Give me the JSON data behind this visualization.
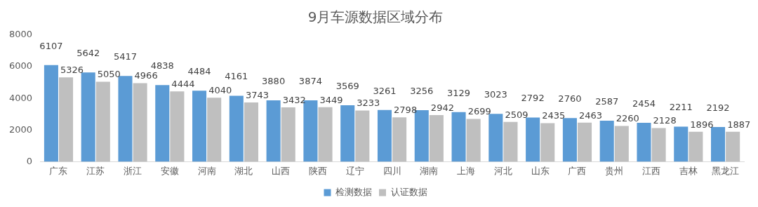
{
  "chart_data": {
    "type": "bar",
    "title": "9月车源数据区域分布",
    "categories": [
      "广东",
      "江苏",
      "浙江",
      "安徽",
      "河南",
      "湖北",
      "山西",
      "陕西",
      "辽宁",
      "四川",
      "湖南",
      "上海",
      "河北",
      "山东",
      "广西",
      "贵州",
      "江西",
      "吉林",
      "黑龙江"
    ],
    "series": [
      {
        "name": "检测数据",
        "color": "#5b9bd5",
        "values": [
          6107,
          5642,
          5417,
          4838,
          4484,
          4161,
          3880,
          3874,
          3569,
          3261,
          3256,
          3129,
          3023,
          2792,
          2760,
          2587,
          2454,
          2211,
          2192
        ]
      },
      {
        "name": "认证数据",
        "color": "#bfbfbf",
        "values": [
          5326,
          5050,
          4966,
          4444,
          4040,
          3743,
          3432,
          3449,
          3233,
          2798,
          2942,
          2699,
          2509,
          2435,
          2463,
          2260,
          2128,
          1896,
          1887
        ]
      }
    ],
    "ylim": [
      0,
      8000
    ],
    "yticks": [
      0,
      2000,
      4000,
      6000,
      8000
    ],
    "grid": false,
    "legend": "bottom",
    "data_labels": true
  }
}
